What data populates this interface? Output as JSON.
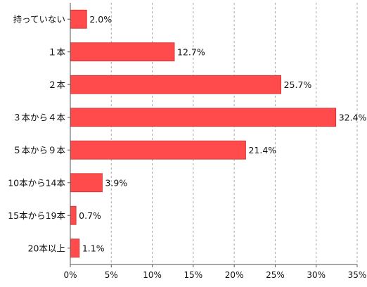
{
  "chart_data": {
    "type": "bar",
    "orientation": "horizontal",
    "categories": [
      "持っていない",
      "１本",
      "２本",
      "３本から４本",
      "５本から９本",
      "10本から14本",
      "15本から19本",
      "20本以上"
    ],
    "values": [
      2.0,
      12.7,
      25.7,
      32.4,
      21.4,
      3.9,
      0.7,
      1.1
    ],
    "value_labels": [
      "2.0%",
      "12.7%",
      "25.7%",
      "32.4%",
      "21.4%",
      "3.9%",
      "0.7%",
      "1.1%"
    ],
    "x_ticks": [
      "0%",
      "5%",
      "10%",
      "15%",
      "20%",
      "25%",
      "30%",
      "35%"
    ],
    "xlim": [
      0,
      35
    ],
    "grid": "vertical dashed",
    "legend": "none",
    "bar_color": "#ff4b4b",
    "bar_edge_color": "#cc2f2f"
  }
}
